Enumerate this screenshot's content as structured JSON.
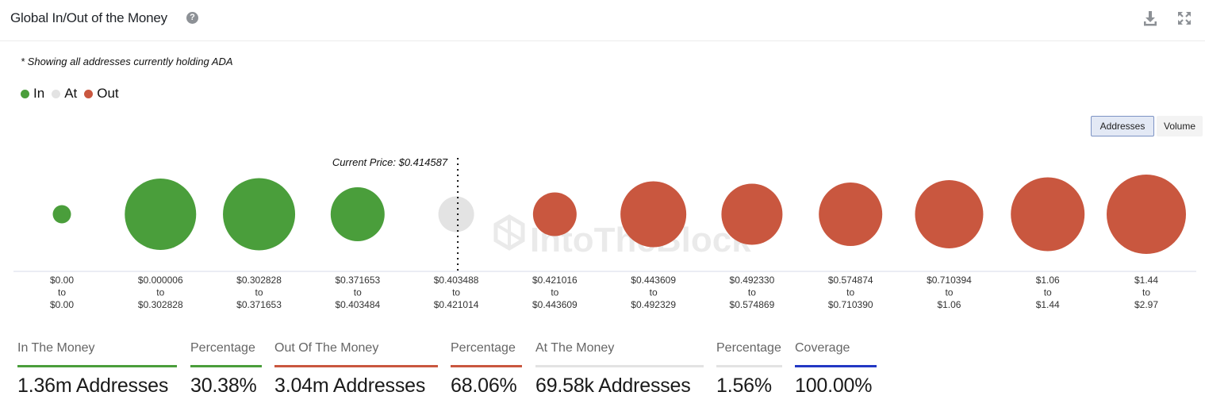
{
  "header": {
    "title": "Global In/Out of the Money",
    "help_icon": "question-circle-icon",
    "download_icon": "download-icon",
    "expand_icon": "expand-arrows-icon"
  },
  "note": "* Showing all addresses currently holding ADA",
  "legend": [
    {
      "label": "In",
      "color": "#4a9e3b"
    },
    {
      "label": "At",
      "color": "#e3e3e3"
    },
    {
      "label": "Out",
      "color": "#c9573f"
    }
  ],
  "toggles": {
    "addresses": "Addresses",
    "volume": "Volume",
    "selected": "Addresses"
  },
  "watermark": "IntoTheBlock",
  "chart_data": {
    "type": "bubble",
    "current_price_label": "Current Price: $0.414587",
    "current_price_after_index": 4,
    "categories": [
      {
        "from": "$0.00",
        "to": "$0.00",
        "status": "In",
        "relative_size": 0.23
      },
      {
        "from": "$0.000006",
        "to": "$0.302828",
        "status": "In",
        "relative_size": 0.9
      },
      {
        "from": "$0.302828",
        "to": "$0.371653",
        "status": "In",
        "relative_size": 0.91
      },
      {
        "from": "$0.371653",
        "to": "$0.403484",
        "status": "In",
        "relative_size": 0.68
      },
      {
        "from": "$0.403488",
        "to": "$0.421014",
        "status": "At",
        "relative_size": 0.45
      },
      {
        "from": "$0.421016",
        "to": "$0.443609",
        "status": "Out",
        "relative_size": 0.55
      },
      {
        "from": "$0.443609",
        "to": "$0.492329",
        "status": "Out",
        "relative_size": 0.83
      },
      {
        "from": "$0.492330",
        "to": "$0.574869",
        "status": "Out",
        "relative_size": 0.77
      },
      {
        "from": "$0.574874",
        "to": "$0.710390",
        "status": "Out",
        "relative_size": 0.8
      },
      {
        "from": "$0.710394",
        "to": "$1.06",
        "status": "Out",
        "relative_size": 0.86
      },
      {
        "from": "$1.06",
        "to": "$1.44",
        "status": "Out",
        "relative_size": 0.93
      },
      {
        "from": "$1.44",
        "to": "$2.97",
        "status": "Out",
        "relative_size": 1.0
      }
    ],
    "range_joiner": "to",
    "colors": {
      "In": "#4a9e3b",
      "At": "#e3e3e3",
      "Out": "#c9573f"
    }
  },
  "stats": [
    {
      "label": "In The Money",
      "value": "1.36m Addresses",
      "color": "#4a9e3b"
    },
    {
      "label": "Percentage",
      "value": "30.38%",
      "color": "#4a9e3b"
    },
    {
      "label": "Out Of The Money",
      "value": "3.04m Addresses",
      "color": "#c9573f"
    },
    {
      "label": "Percentage",
      "value": "68.06%",
      "color": "#c9573f"
    },
    {
      "label": "At The Money",
      "value": "69.58k Addresses",
      "color": "#e3e3e3"
    },
    {
      "label": "Percentage",
      "value": "1.56%",
      "color": "#e3e3e3"
    },
    {
      "label": "Coverage",
      "value": "100.00%",
      "color": "#2338c4"
    }
  ]
}
